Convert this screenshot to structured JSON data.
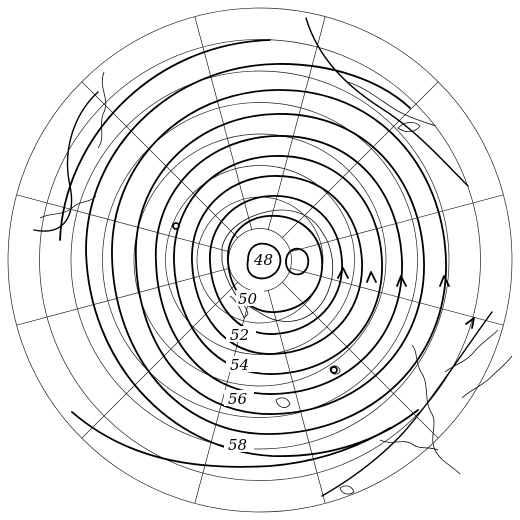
{
  "map": {
    "contour_labels": [
      "48",
      "50",
      "52",
      "54",
      "56",
      "58"
    ]
  }
}
